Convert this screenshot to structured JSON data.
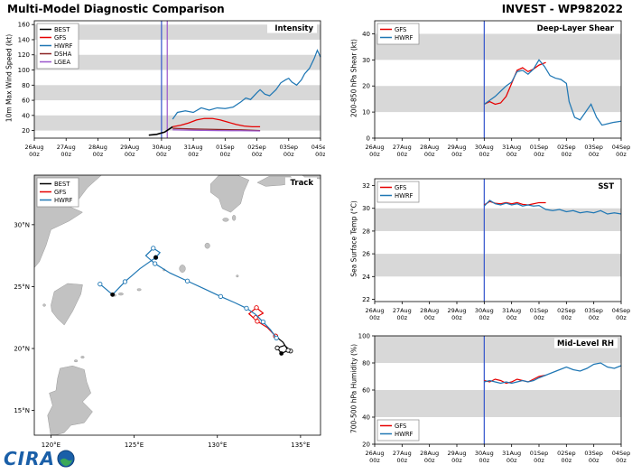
{
  "header": {
    "title": "Multi-Model Diagnostic Comparison",
    "storm_id": "INVEST - WP982022"
  },
  "logo": {
    "text": "CIRA"
  },
  "colors": {
    "best": "#000000",
    "gfs": "#e60000",
    "hwrf": "#1f77b4",
    "dsha": "#8b2222",
    "lgea": "#9955cc",
    "vline_blue": "#3355cc",
    "vline_purple": "#9955cc",
    "band": "#d8d8d8",
    "land": "#c2c2c2",
    "land_edge": "#9a9a9a"
  },
  "time_axis": {
    "labels": [
      [
        "26Aug",
        "00z"
      ],
      [
        "27Aug",
        "00z"
      ],
      [
        "28Aug",
        "00z"
      ],
      [
        "29Aug",
        "00z"
      ],
      [
        "30Aug",
        "00z"
      ],
      [
        "31Aug",
        "00z"
      ],
      [
        "01Sep",
        "00z"
      ],
      [
        "02Sep",
        "00z"
      ],
      [
        "03Sep",
        "00z"
      ],
      [
        "04Sep",
        "00z"
      ]
    ]
  },
  "chart_data": [
    {
      "id": "intensity",
      "type": "line",
      "title": "Intensity",
      "ylabel": "10m Max Wind Speed (kt)",
      "xlim": [
        0,
        9
      ],
      "ylim": [
        10,
        165
      ],
      "yticks": [
        20,
        40,
        60,
        80,
        100,
        120,
        140,
        160
      ],
      "bands": [
        [
          20,
          40
        ],
        [
          60,
          80
        ],
        [
          100,
          120
        ],
        [
          140,
          160
        ]
      ],
      "vlines": [
        {
          "x": 4.0,
          "color": "vline_blue"
        },
        {
          "x": 4.18,
          "color": "vline_purple"
        }
      ],
      "legend": {
        "pos": "top-left",
        "entries": [
          "BEST",
          "GFS",
          "HWRF",
          "DSHA",
          "LGEA"
        ]
      },
      "series": [
        {
          "name": "BEST",
          "color_key": "best",
          "x": [
            3.6,
            3.85,
            4.1,
            4.35
          ],
          "y": [
            14,
            15,
            18,
            25
          ]
        },
        {
          "name": "GFS",
          "color_key": "gfs",
          "x": [
            4.35,
            4.6,
            4.85,
            5.1,
            5.35,
            5.6,
            5.85,
            6.1,
            6.35,
            6.6,
            6.85,
            7.1
          ],
          "y": [
            25,
            27,
            30,
            34,
            36,
            36,
            34,
            31,
            28,
            26,
            25,
            25
          ]
        },
        {
          "name": "HWRF",
          "color_key": "hwrf",
          "x": [
            4.35,
            4.5,
            4.75,
            5.0,
            5.25,
            5.5,
            5.75,
            6.0,
            6.25,
            6.5,
            6.65,
            6.8,
            7.0,
            7.1,
            7.25,
            7.4,
            7.6,
            7.75,
            7.9,
            8.0,
            8.1,
            8.25,
            8.4,
            8.5,
            8.65,
            8.8,
            8.9,
            9.0
          ],
          "y": [
            35,
            44,
            46,
            44,
            50,
            47,
            50,
            49,
            51,
            58,
            63,
            61,
            70,
            74,
            68,
            66,
            74,
            83,
            87,
            89,
            84,
            80,
            87,
            95,
            102,
            115,
            126,
            117
          ]
        },
        {
          "name": "DSHA",
          "color_key": "dsha",
          "x": [
            4.35,
            5.0,
            5.75,
            6.5,
            7.1
          ],
          "y": [
            23,
            22,
            21.5,
            21,
            20
          ]
        },
        {
          "name": "LGEA",
          "color_key": "lgea",
          "x": [
            4.35,
            5.0,
            5.75,
            6.5,
            7.1
          ],
          "y": [
            21,
            20.5,
            20,
            19.8,
            19.5
          ]
        }
      ]
    },
    {
      "id": "track",
      "type": "track",
      "title": "Track",
      "lonlim": [
        119,
        136.2
      ],
      "latlim": [
        13,
        34
      ],
      "lon_ticks": [
        {
          "v": 120,
          "label": "120°E"
        },
        {
          "v": 125,
          "label": "125°E"
        },
        {
          "v": 130,
          "label": "130°E"
        },
        {
          "v": 135,
          "label": "135°E"
        }
      ],
      "lat_ticks": [
        {
          "v": 15,
          "label": "15°N"
        },
        {
          "v": 20,
          "label": "20°N"
        },
        {
          "v": 25,
          "label": "25°N"
        },
        {
          "v": 30,
          "label": "30°N"
        }
      ],
      "legend": {
        "pos": "top-left",
        "entries": [
          "BEST",
          "GFS",
          "HWRF"
        ]
      },
      "land": [
        [
          [
            118.5,
            34.2
          ],
          [
            123.2,
            34.2
          ],
          [
            122.2,
            33.0
          ],
          [
            121.7,
            32.1
          ],
          [
            120.7,
            31.7
          ],
          [
            121.9,
            31.0
          ],
          [
            121.1,
            30.3
          ],
          [
            120.0,
            29.6
          ],
          [
            119.7,
            28.3
          ],
          [
            119.3,
            27.0
          ],
          [
            118.8,
            26.2
          ],
          [
            118.5,
            25.8
          ]
        ],
        [
          [
            120.0,
            23.5
          ],
          [
            120.2,
            24.6
          ],
          [
            121.0,
            25.25
          ],
          [
            121.9,
            25.15
          ],
          [
            121.8,
            24.4
          ],
          [
            121.3,
            23.0
          ],
          [
            120.8,
            21.9
          ],
          [
            120.4,
            22.4
          ],
          [
            120.05,
            23.0
          ]
        ],
        [
          [
            119.9,
            16.4
          ],
          [
            120.3,
            16.6
          ],
          [
            120.4,
            17.6
          ],
          [
            120.55,
            18.4
          ],
          [
            121.3,
            18.6
          ],
          [
            122.0,
            18.3
          ],
          [
            122.15,
            17.3
          ],
          [
            122.4,
            16.4
          ],
          [
            121.9,
            15.7
          ],
          [
            122.5,
            14.9
          ],
          [
            122.0,
            14.0
          ],
          [
            121.2,
            13.8
          ],
          [
            120.8,
            13.2
          ],
          [
            120.0,
            12.9
          ],
          [
            119.8,
            14.6
          ],
          [
            120.1,
            15.4
          ]
        ],
        [
          [
            129.6,
            33.3
          ],
          [
            130.1,
            34.0
          ],
          [
            131.2,
            34.0
          ],
          [
            131.9,
            33.6
          ],
          [
            131.6,
            32.7
          ],
          [
            131.4,
            31.7
          ],
          [
            130.8,
            31.0
          ],
          [
            130.3,
            31.3
          ],
          [
            130.1,
            32.1
          ],
          [
            129.6,
            32.6
          ]
        ],
        [
          [
            132.4,
            33.4
          ],
          [
            133.1,
            33.9
          ],
          [
            134.4,
            33.9
          ],
          [
            134.7,
            33.4
          ],
          [
            133.9,
            33.2
          ],
          [
            132.9,
            33.1
          ]
        ],
        [
          [
            134.9,
            34.2
          ],
          [
            135.3,
            33.8
          ],
          [
            136.2,
            33.7
          ],
          [
            136.8,
            34.3
          ]
        ]
      ],
      "islands": [
        [
          130.5,
          30.4,
          0.18,
          0.14
        ],
        [
          131.0,
          30.55,
          0.1,
          0.22
        ],
        [
          129.4,
          28.3,
          0.15,
          0.22
        ],
        [
          127.9,
          26.45,
          0.18,
          0.3
        ],
        [
          126.8,
          26.35,
          0.07,
          0.06
        ],
        [
          125.3,
          24.75,
          0.12,
          0.08
        ],
        [
          124.2,
          24.4,
          0.15,
          0.1
        ],
        [
          123.8,
          24.3,
          0.12,
          0.09
        ],
        [
          131.2,
          25.85,
          0.07,
          0.06
        ],
        [
          121.9,
          19.3,
          0.1,
          0.08
        ],
        [
          121.5,
          19.0,
          0.1,
          0.07
        ],
        [
          119.6,
          23.5,
          0.08,
          0.1
        ]
      ],
      "series": [
        {
          "name": "BEST",
          "color_key": "best",
          "points": [
            [
              134.4,
              19.8
            ],
            [
              134.05,
              20.25
            ],
            [
              133.6,
              20.05
            ],
            [
              133.85,
              19.6
            ],
            [
              134.25,
              19.85
            ],
            [
              133.95,
              20.5
            ],
            [
              133.5,
              21.0
            ]
          ]
        },
        {
          "name": "GFS",
          "color_key": "gfs",
          "points": [
            [
              133.5,
              21.0
            ],
            [
              133.0,
              21.7
            ],
            [
              132.4,
              22.2
            ],
            [
              131.9,
              22.8
            ],
            [
              132.35,
              23.3
            ],
            [
              132.75,
              22.85
            ],
            [
              132.3,
              22.5
            ]
          ]
        },
        {
          "name": "HWRF",
          "color_key": "hwrf",
          "points": [
            [
              133.55,
              20.85
            ],
            [
              133.2,
              21.5
            ],
            [
              132.75,
              22.15
            ],
            [
              132.3,
              22.75
            ],
            [
              131.75,
              23.25
            ],
            [
              131.05,
              23.7
            ],
            [
              130.2,
              24.2
            ],
            [
              129.25,
              24.8
            ],
            [
              128.2,
              25.45
            ],
            [
              127.15,
              26.1
            ],
            [
              126.25,
              26.85
            ],
            [
              125.7,
              27.5
            ],
            [
              126.15,
              28.1
            ],
            [
              126.55,
              27.75
            ],
            [
              126.3,
              27.35
            ],
            [
              125.35,
              26.45
            ],
            [
              124.45,
              25.4
            ],
            [
              123.7,
              24.35
            ],
            [
              122.95,
              25.2
            ]
          ]
        }
      ],
      "black_dots": [
        [
          133.85,
          19.6
        ],
        [
          126.3,
          27.35
        ],
        [
          123.7,
          24.35
        ]
      ]
    },
    {
      "id": "shear",
      "type": "line",
      "title": "Deep-Layer Shear",
      "ylabel": "200-850 hPa Shear (kt)",
      "xlim": [
        0,
        9
      ],
      "ylim": [
        0,
        45
      ],
      "yticks": [
        0,
        10,
        20,
        30,
        40
      ],
      "bands": [
        [
          10,
          20
        ],
        [
          30,
          40
        ]
      ],
      "vlines": [
        {
          "x": 4.0,
          "color": "vline_blue"
        }
      ],
      "legend": {
        "pos": "top-left",
        "entries": [
          "GFS",
          "HWRF"
        ]
      },
      "series": [
        {
          "name": "GFS",
          "color_key": "gfs",
          "x": [
            4.0,
            4.2,
            4.4,
            4.6,
            4.8,
            5.0,
            5.2,
            5.4,
            5.6,
            5.8,
            6.0,
            6.25
          ],
          "y": [
            13,
            14,
            13,
            13.5,
            16,
            21,
            26,
            27,
            25.5,
            26.5,
            28,
            29
          ]
        },
        {
          "name": "HWRF",
          "color_key": "hwrf",
          "x": [
            4.0,
            4.2,
            4.4,
            4.6,
            4.8,
            5.0,
            5.2,
            5.4,
            5.6,
            5.8,
            6.0,
            6.2,
            6.4,
            6.6,
            6.8,
            7.0,
            7.1,
            7.3,
            7.5,
            7.7,
            7.9,
            8.1,
            8.3,
            8.5,
            8.7,
            9.0
          ],
          "y": [
            13,
            14.5,
            16,
            18,
            20,
            21.5,
            25.5,
            26,
            24.5,
            26.5,
            30,
            27.5,
            24,
            23,
            22.5,
            21,
            14,
            8,
            7,
            10,
            13,
            8,
            5,
            5.5,
            6,
            6.5
          ]
        }
      ]
    },
    {
      "id": "sst",
      "type": "line",
      "title": "SST",
      "ylabel": "Sea Surface Temp (°C)",
      "xlim": [
        0,
        9
      ],
      "ylim": [
        21.8,
        32.6
      ],
      "yticks": [
        22,
        24,
        26,
        28,
        30,
        32
      ],
      "bands": [
        [
          24,
          26
        ],
        [
          28,
          30
        ]
      ],
      "vlines": [
        {
          "x": 4.0,
          "color": "vline_blue"
        }
      ],
      "legend": {
        "pos": "top-left",
        "entries": [
          "GFS",
          "HWRF"
        ]
      },
      "series": [
        {
          "name": "GFS",
          "color_key": "gfs",
          "x": [
            4.0,
            4.2,
            4.4,
            4.6,
            4.8,
            5.0,
            5.2,
            5.4,
            5.6,
            5.8,
            6.0,
            6.25
          ],
          "y": [
            30.3,
            30.6,
            30.45,
            30.4,
            30.5,
            30.4,
            30.5,
            30.35,
            30.3,
            30.4,
            30.5,
            30.5
          ]
        },
        {
          "name": "HWRF",
          "color_key": "hwrf",
          "x": [
            4.0,
            4.2,
            4.4,
            4.6,
            4.8,
            5.0,
            5.2,
            5.4,
            5.6,
            5.8,
            6.0,
            6.25,
            6.5,
            6.75,
            7.0,
            7.25,
            7.5,
            7.75,
            8.0,
            8.25,
            8.5,
            8.75,
            9.0
          ],
          "y": [
            30.2,
            30.7,
            30.4,
            30.3,
            30.45,
            30.3,
            30.4,
            30.2,
            30.3,
            30.2,
            30.25,
            29.9,
            29.8,
            29.9,
            29.7,
            29.8,
            29.6,
            29.7,
            29.6,
            29.8,
            29.5,
            29.6,
            29.5
          ]
        }
      ]
    },
    {
      "id": "rh",
      "type": "line",
      "title": "Mid-Level RH",
      "ylabel": "700-500 hPa Humidity (%)",
      "xlim": [
        0,
        9
      ],
      "ylim": [
        20,
        100
      ],
      "yticks": [
        20,
        40,
        60,
        80,
        100
      ],
      "bands": [
        [
          40,
          60
        ],
        [
          80,
          100
        ]
      ],
      "vlines": [
        {
          "x": 4.0,
          "color": "vline_blue"
        }
      ],
      "legend": {
        "pos": "bottom-left",
        "entries": [
          "GFS",
          "HWRF"
        ]
      },
      "series": [
        {
          "name": "GFS",
          "color_key": "gfs",
          "x": [
            4.0,
            4.2,
            4.4,
            4.6,
            4.8,
            5.0,
            5.2,
            5.4,
            5.6,
            5.8,
            6.0,
            6.25
          ],
          "y": [
            67,
            66,
            68,
            67,
            65,
            66,
            68,
            67,
            66,
            68,
            70,
            71
          ]
        },
        {
          "name": "HWRF",
          "color_key": "hwrf",
          "x": [
            4.0,
            4.2,
            4.4,
            4.6,
            4.8,
            5.0,
            5.2,
            5.4,
            5.6,
            5.8,
            6.0,
            6.25,
            6.5,
            6.75,
            7.0,
            7.25,
            7.5,
            7.75,
            8.0,
            8.25,
            8.5,
            8.75,
            9.0
          ],
          "y": [
            66,
            67,
            66,
            65,
            66,
            65,
            66,
            67,
            66,
            67,
            69,
            71,
            73,
            75,
            77,
            75,
            74,
            76,
            79,
            80,
            77,
            76,
            78
          ]
        }
      ]
    }
  ]
}
